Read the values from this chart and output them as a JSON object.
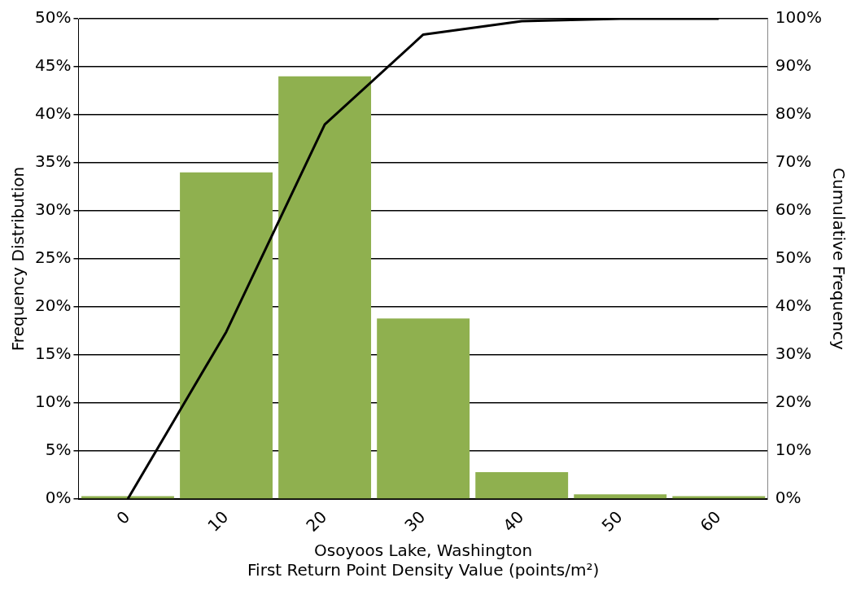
{
  "chart_data": {
    "type": "bar",
    "xlabel": "Osoyoos Lake, Washington\nFirst Return Point Density Value (points/m²)",
    "ylabel": "Frequency Distribution",
    "y2label": "Cumulative Frequency",
    "categories": [
      "0",
      "10",
      "20",
      "30",
      "40",
      "50",
      "60"
    ],
    "series": [
      {
        "color": "#8fb04f",
        "values": [
          0.3,
          34.0,
          44.0,
          18.8,
          2.8,
          0.5,
          0.3
        ]
      },
      {
        "type": "line",
        "axis": "y2",
        "color": "#000000",
        "values": [
          0,
          34.8,
          78,
          96.7,
          99.5,
          100,
          100
        ]
      }
    ],
    "ylim": [
      0,
      50
    ],
    "yticks": [
      {
        "value": 0,
        "label": "0%"
      },
      {
        "value": 5,
        "label": "5%"
      },
      {
        "value": 10,
        "label": "10%"
      },
      {
        "value": 15,
        "label": "15%"
      },
      {
        "value": 20,
        "label": "20%"
      },
      {
        "value": 25,
        "label": "25%"
      },
      {
        "value": 30,
        "label": "30%"
      },
      {
        "value": 35,
        "label": "35%"
      },
      {
        "value": 40,
        "label": "40%"
      },
      {
        "value": 45,
        "label": "45%"
      },
      {
        "value": 50,
        "label": "50%"
      }
    ],
    "y2lim": [
      0,
      100
    ],
    "y2ticks": [
      {
        "value": 0,
        "label": "0%"
      },
      {
        "value": 10,
        "label": "10%"
      },
      {
        "value": 20,
        "label": "20%"
      },
      {
        "value": 30,
        "label": "30%"
      },
      {
        "value": 40,
        "label": "40%"
      },
      {
        "value": 50,
        "label": "50%"
      },
      {
        "value": 60,
        "label": "60%"
      },
      {
        "value": 70,
        "label": "70%"
      },
      {
        "value": 80,
        "label": "80%"
      },
      {
        "value": 90,
        "label": "90%"
      },
      {
        "value": 100,
        "label": "100%"
      }
    ],
    "grid": "y",
    "legend": false,
    "marker": "none",
    "line_style": "solid"
  }
}
